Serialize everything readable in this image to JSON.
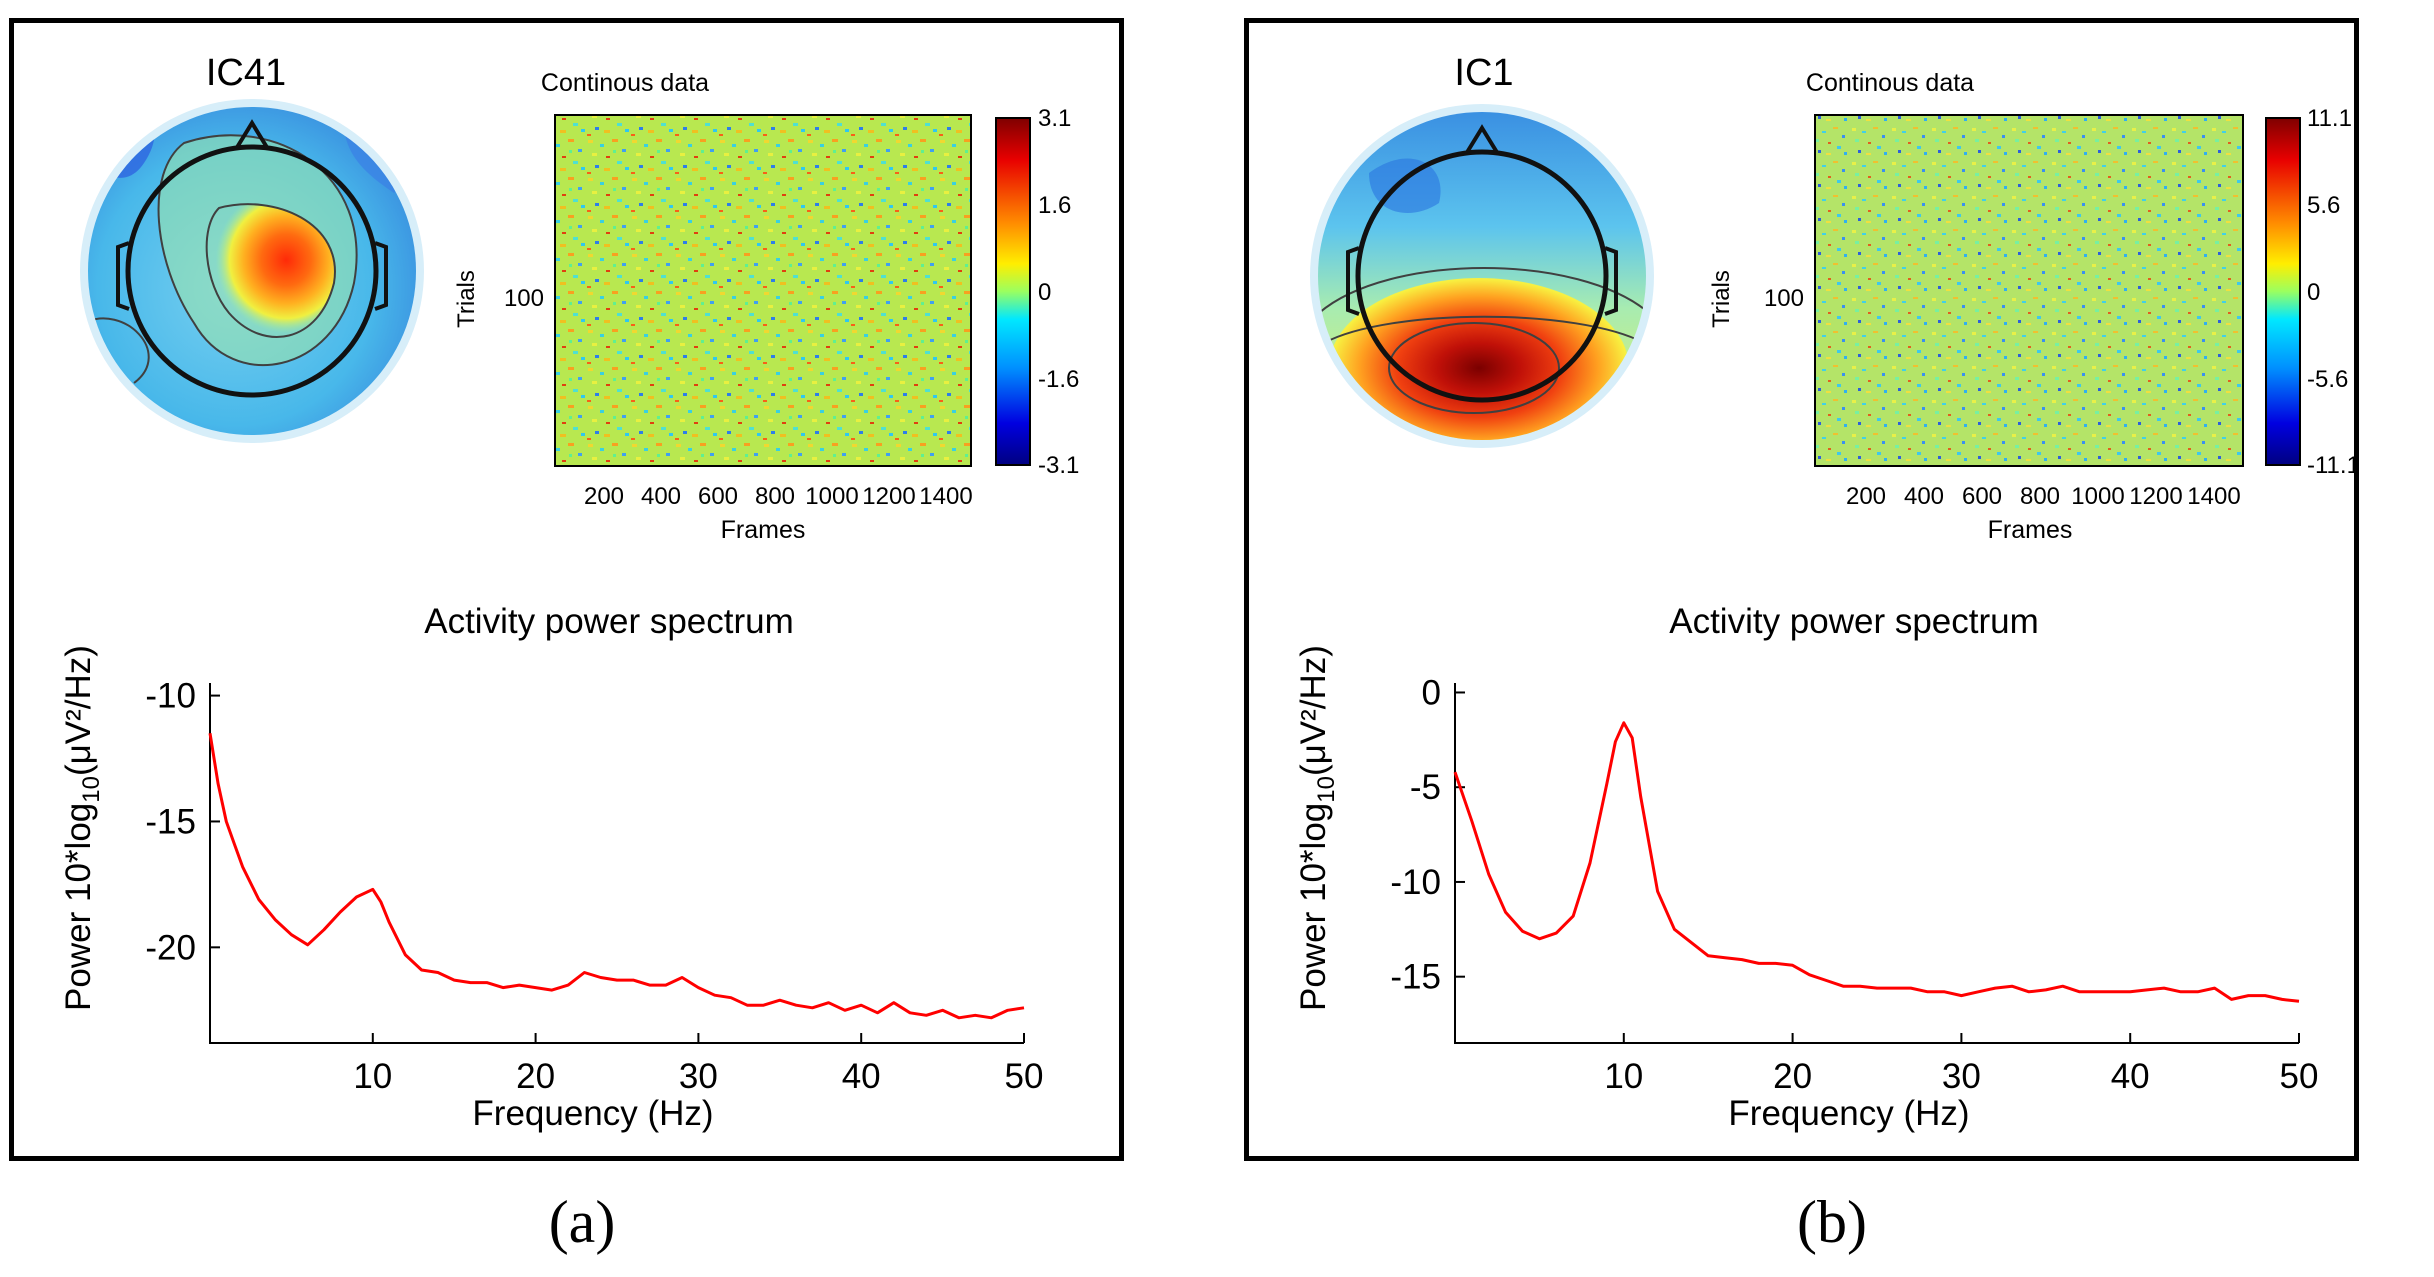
{
  "panels": [
    {
      "id": "a",
      "caption": "(a)",
      "component_label": "IC41",
      "topography_colors": {
        "scalp": "#42b6e8",
        "hot": "#ff3010",
        "edge": "#1a50d0"
      },
      "raster": {
        "title": "Continous data",
        "ylabel": "Trials",
        "xlabel": "Frames",
        "ytick": "100",
        "xticks": [
          "200",
          "400",
          "600",
          "800",
          "1000",
          "1200",
          "1400"
        ],
        "colorbar_ticks": [
          "3.1",
          "1.6",
          "0",
          "-1.6",
          "-3.1"
        ]
      },
      "chart_data": {
        "type": "line",
        "title": "Activity power spectrum",
        "xlabel": "Frequency (Hz)",
        "ylabel_main": "Power 10*log",
        "ylabel_sub": "10",
        "ylabel_unit": "(μV²/Hz)",
        "xlim": [
          0,
          50
        ],
        "ylim": [
          -23.8,
          -9.5
        ],
        "xticks": [
          10,
          20,
          30,
          40,
          50
        ],
        "yticks": [
          -10,
          -15,
          -20
        ],
        "color": "#ff0000",
        "x": [
          0,
          0.5,
          1,
          1.5,
          2,
          3,
          4,
          5,
          6,
          7,
          8,
          9,
          10,
          10.5,
          11,
          12,
          13,
          14,
          15,
          16,
          17,
          18,
          19,
          20,
          21,
          22,
          23,
          24,
          25,
          26,
          27,
          28,
          29,
          30,
          31,
          32,
          33,
          34,
          35,
          36,
          37,
          38,
          39,
          40,
          41,
          42,
          43,
          44,
          45,
          46,
          47,
          48,
          49,
          50
        ],
        "y": [
          -11.5,
          -13.5,
          -15,
          -15.9,
          -16.8,
          -18.1,
          -18.9,
          -19.5,
          -19.9,
          -19.3,
          -18.6,
          -18.0,
          -17.7,
          -18.2,
          -19.0,
          -20.3,
          -20.9,
          -21.0,
          -21.3,
          -21.4,
          -21.4,
          -21.6,
          -21.5,
          -21.6,
          -21.7,
          -21.5,
          -21.0,
          -21.2,
          -21.3,
          -21.3,
          -21.5,
          -21.5,
          -21.2,
          -21.6,
          -21.9,
          -22.0,
          -22.3,
          -22.3,
          -22.1,
          -22.3,
          -22.4,
          -22.2,
          -22.5,
          -22.3,
          -22.6,
          -22.2,
          -22.6,
          -22.7,
          -22.5,
          -22.8,
          -22.7,
          -22.8,
          -22.5,
          -22.4
        ]
      }
    },
    {
      "id": "b",
      "caption": "(b)",
      "component_label": "IC1",
      "topography_colors": {
        "scalp": "#42b6e8",
        "hot": "#d01808",
        "edge": "#2a70e0"
      },
      "raster": {
        "title": "Continous data",
        "ylabel": "Trials",
        "xlabel": "Frames",
        "ytick": "100",
        "xticks": [
          "200",
          "400",
          "600",
          "800",
          "1000",
          "1200",
          "1400"
        ],
        "colorbar_ticks": [
          "11.1",
          "5.6",
          "0",
          "-5.6",
          "-11.1"
        ]
      },
      "chart_data": {
        "type": "line",
        "title": "Activity power spectrum",
        "xlabel": "Frequency (Hz)",
        "ylabel_main": "Power 10*log",
        "ylabel_sub": "10",
        "ylabel_unit": "(μV²/Hz)",
        "xlim": [
          0,
          50
        ],
        "ylim": [
          -18.5,
          0.5
        ],
        "xticks": [
          10,
          20,
          30,
          40,
          50
        ],
        "yticks": [
          0,
          -5,
          -10,
          -15
        ],
        "color": "#ff0000",
        "x": [
          0,
          1,
          2,
          3,
          4,
          5,
          6,
          7,
          8,
          9,
          9.5,
          10,
          10.5,
          11,
          12,
          13,
          14,
          15,
          16,
          17,
          18,
          19,
          20,
          21,
          22,
          23,
          24,
          25,
          26,
          27,
          28,
          29,
          30,
          31,
          32,
          33,
          34,
          35,
          36,
          37,
          38,
          39,
          40,
          41,
          42,
          43,
          44,
          45,
          46,
          47,
          48,
          49,
          50
        ],
        "y": [
          -4.2,
          -6.8,
          -9.6,
          -11.6,
          -12.6,
          -13.0,
          -12.7,
          -11.8,
          -9.0,
          -4.8,
          -2.6,
          -1.6,
          -2.4,
          -5.5,
          -10.5,
          -12.5,
          -13.2,
          -13.9,
          -14.0,
          -14.1,
          -14.3,
          -14.3,
          -14.4,
          -14.9,
          -15.2,
          -15.5,
          -15.5,
          -15.6,
          -15.6,
          -15.6,
          -15.8,
          -15.8,
          -16.0,
          -15.8,
          -15.6,
          -15.5,
          -15.8,
          -15.7,
          -15.5,
          -15.8,
          -15.8,
          -15.8,
          -15.8,
          -15.7,
          -15.6,
          -15.8,
          -15.8,
          -15.6,
          -16.2,
          -16.0,
          -16.0,
          -16.2,
          -16.3
        ]
      }
    }
  ]
}
